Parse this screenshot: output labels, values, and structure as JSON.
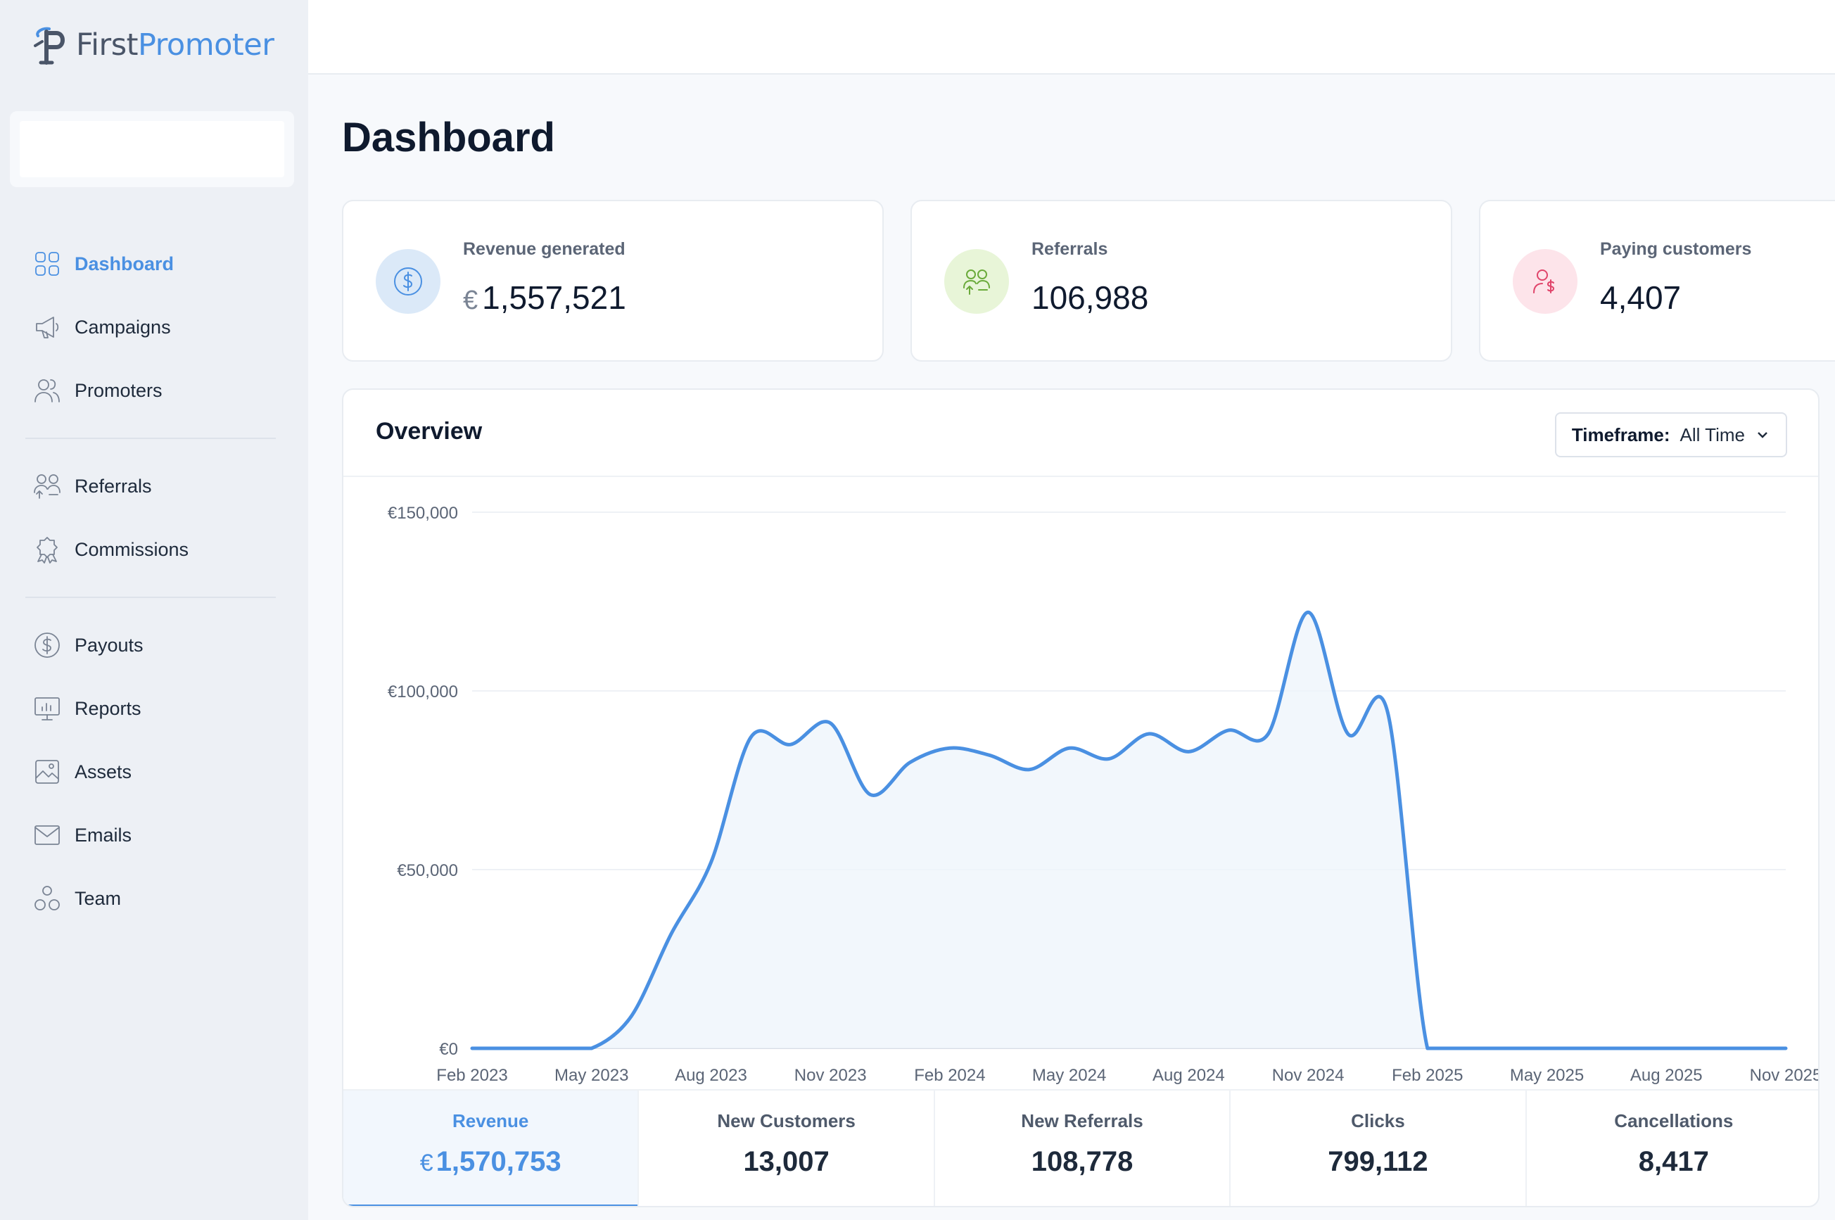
{
  "app": {
    "logo_first": "First",
    "logo_second": "Promoter"
  },
  "sidebar": {
    "items": [
      {
        "label": "Dashboard",
        "icon": "dashboard-grid-icon"
      },
      {
        "label": "Campaigns",
        "icon": "megaphone-icon"
      },
      {
        "label": "Promoters",
        "icon": "users-icon"
      },
      {
        "label": "Referrals",
        "icon": "referrals-icon"
      },
      {
        "label": "Commissions",
        "icon": "award-icon"
      },
      {
        "label": "Payouts",
        "icon": "dollar-circle-icon"
      },
      {
        "label": "Reports",
        "icon": "presentation-chart-icon"
      },
      {
        "label": "Assets",
        "icon": "image-icon"
      },
      {
        "label": "Emails",
        "icon": "envelope-icon"
      },
      {
        "label": "Team",
        "icon": "team-icon"
      }
    ],
    "active": "Dashboard"
  },
  "page": {
    "title": "Dashboard"
  },
  "stats": [
    {
      "label": "Revenue generated",
      "currency": "€",
      "value": "1,557,521",
      "icon": "dollar-circle-icon",
      "color": "#4a90e2",
      "bg": "#dbe9f8"
    },
    {
      "label": "Referrals",
      "currency": "",
      "value": "106,988",
      "icon": "referrals-icon",
      "color": "#6aaa3a",
      "bg": "#e8f5d8"
    },
    {
      "label": "Paying customers",
      "currency": "",
      "value": "4,407",
      "icon": "paying-customer-icon",
      "color": "#e0446a",
      "bg": "#fde4ea"
    }
  ],
  "overview": {
    "title": "Overview",
    "timeframe_label": "Timeframe:",
    "timeframe_value": "All Time"
  },
  "chart_data": {
    "type": "area",
    "title": "",
    "xlabel": "",
    "ylabel": "",
    "y_ticks": [
      "€0",
      "€50,000",
      "€100,000",
      "€150,000"
    ],
    "ylim": [
      0,
      150000
    ],
    "x_ticks": [
      "Feb 2023",
      "May 2023",
      "Aug 2023",
      "Nov 2023",
      "Feb 2024",
      "May 2024",
      "Aug 2024",
      "Nov 2024",
      "Feb 2025",
      "May 2025",
      "Aug 2025",
      "Nov 2025"
    ],
    "x": [
      "Feb 2023",
      "Mar 2023",
      "Apr 2023",
      "May 2023",
      "Jun 2023",
      "Jul 2023",
      "Aug 2023",
      "Sep 2023",
      "Oct 2023",
      "Nov 2023",
      "Dec 2023",
      "Jan 2024",
      "Feb 2024",
      "Mar 2024",
      "Apr 2024",
      "May 2024",
      "Jun 2024",
      "Jul 2024",
      "Aug 2024",
      "Sep 2024",
      "Oct 2024",
      "Nov 2024",
      "Dec 2024",
      "Jan 2025",
      "Feb 2025",
      "Mar 2025",
      "Apr 2025",
      "May 2025",
      "Jun 2025",
      "Jul 2025",
      "Aug 2025",
      "Sep 2025",
      "Oct 2025",
      "Nov 2025"
    ],
    "series": [
      {
        "values": [
          0,
          0,
          0,
          0,
          9000,
          32000,
          52000,
          87000,
          85000,
          91000,
          71000,
          80000,
          84000,
          82000,
          78000,
          84000,
          81000,
          88000,
          83000,
          89000,
          88000,
          122000,
          88000,
          94000,
          0,
          0,
          0,
          0,
          0,
          0,
          0,
          0,
          0,
          0
        ]
      }
    ],
    "color": "#4a90e2",
    "grid": true,
    "legend": "none"
  },
  "metrics": [
    {
      "label": "Revenue",
      "currency": "€",
      "value": "1,570,753",
      "active": true
    },
    {
      "label": "New Customers",
      "currency": "",
      "value": "13,007"
    },
    {
      "label": "New Referrals",
      "currency": "",
      "value": "108,778"
    },
    {
      "label": "Clicks",
      "currency": "",
      "value": "799,112"
    },
    {
      "label": "Cancellations",
      "currency": "",
      "value": "8,417"
    }
  ]
}
